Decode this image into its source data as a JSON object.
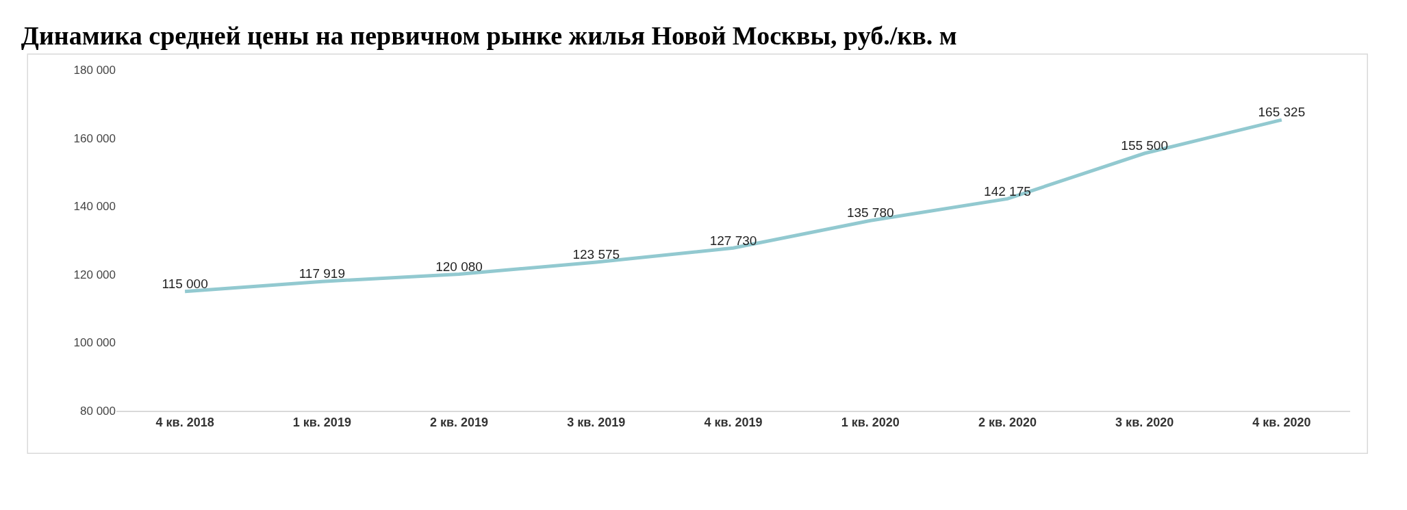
{
  "chart_data": {
    "type": "line",
    "title": "Динамика средней цены на первичном рынке жилья Новой Москвы, руб./кв. м",
    "categories": [
      "4 кв. 2018",
      "1 кв. 2019",
      "2 кв. 2019",
      "3 кв. 2019",
      "4 кв. 2019",
      "1 кв. 2020",
      "2 кв. 2020",
      "3 кв. 2020",
      "4 кв. 2020"
    ],
    "series": [
      {
        "color": "#92c9d0",
        "values": [
          115000,
          117919,
          120080,
          123575,
          127730,
          135780,
          142175,
          155500,
          165325
        ],
        "value_labels": [
          "115 000",
          "117 919",
          "120 080",
          "123 575",
          "127 730",
          "135 780",
          "142 175",
          "155 500",
          "165 325"
        ]
      }
    ],
    "ylim": [
      80000,
      180000
    ],
    "yticks": [
      {
        "value": 80000,
        "label": "80 000"
      },
      {
        "value": 100000,
        "label": "100 000"
      },
      {
        "value": 120000,
        "label": "120 000"
      },
      {
        "value": 140000,
        "label": "140 000"
      },
      {
        "value": 160000,
        "label": "160 000"
      },
      {
        "value": 180000,
        "label": "180 000"
      }
    ],
    "grid": false,
    "marker": "none",
    "line_style": "solid"
  }
}
